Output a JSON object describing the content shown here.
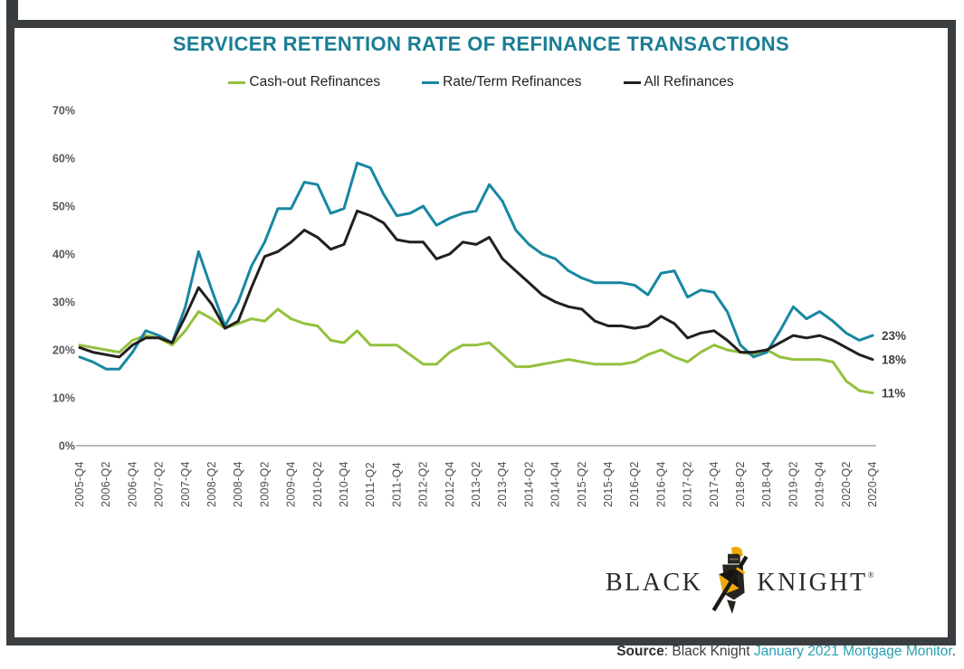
{
  "title": "SERVICER RETENTION RATE OF REFINANCE TRANSACTIONS",
  "chart_data": {
    "type": "line",
    "title": "SERVICER RETENTION RATE OF REFINANCE TRANSACTIONS",
    "xlabel": "",
    "ylabel": "",
    "x_unit": "quarter",
    "ylim": [
      0,
      70
    ],
    "grid": false,
    "legend_position": "top",
    "y_ticks": [
      0,
      10,
      20,
      30,
      40,
      50,
      60,
      70
    ],
    "y_tick_suffix": "%",
    "x_tick_labels": [
      "2005-Q4",
      "2006-Q2",
      "2006-Q4",
      "2007-Q2",
      "2007-Q4",
      "2008-Q2",
      "2008-Q4",
      "2009-Q2",
      "2009-Q4",
      "2010-Q2",
      "2010-Q4",
      "2011-Q2",
      "2011-Q4",
      "2012-Q2",
      "2012-Q4",
      "2013-Q2",
      "2013-Q4",
      "2014-Q2",
      "2014-Q4",
      "2015-Q2",
      "2015-Q4",
      "2016-Q2",
      "2016-Q4",
      "2017-Q2",
      "2017-Q4",
      "2018-Q2",
      "2018-Q4",
      "2019-Q2",
      "2019-Q4",
      "2020-Q2",
      "2020-Q4"
    ],
    "quarters": [
      "2005-Q4",
      "2006-Q1",
      "2006-Q2",
      "2006-Q3",
      "2006-Q4",
      "2007-Q1",
      "2007-Q2",
      "2007-Q3",
      "2007-Q4",
      "2008-Q1",
      "2008-Q2",
      "2008-Q3",
      "2008-Q4",
      "2009-Q1",
      "2009-Q2",
      "2009-Q3",
      "2009-Q4",
      "2010-Q1",
      "2010-Q2",
      "2010-Q3",
      "2010-Q4",
      "2011-Q1",
      "2011-Q2",
      "2011-Q3",
      "2011-Q4",
      "2012-Q1",
      "2012-Q2",
      "2012-Q3",
      "2012-Q4",
      "2013-Q1",
      "2013-Q2",
      "2013-Q3",
      "2013-Q4",
      "2014-Q1",
      "2014-Q2",
      "2014-Q3",
      "2014-Q4",
      "2015-Q1",
      "2015-Q2",
      "2015-Q3",
      "2015-Q4",
      "2016-Q1",
      "2016-Q2",
      "2016-Q3",
      "2016-Q4",
      "2017-Q1",
      "2017-Q2",
      "2017-Q3",
      "2017-Q4",
      "2018-Q1",
      "2018-Q2",
      "2018-Q3",
      "2018-Q4",
      "2019-Q1",
      "2019-Q2",
      "2019-Q3",
      "2019-Q4",
      "2020-Q1",
      "2020-Q2",
      "2020-Q3",
      "2020-Q4"
    ],
    "series": [
      {
        "name": "Cash-out Refinances",
        "color": "#94c13d",
        "end_label": "11%",
        "values": [
          21,
          20.5,
          20,
          19.5,
          22,
          23,
          22.5,
          21,
          24,
          28,
          26.5,
          24.5,
          25.5,
          26.5,
          26,
          28.5,
          26.5,
          25.5,
          25,
          22,
          21.5,
          24,
          21,
          21,
          21,
          19,
          17,
          17,
          19.5,
          21,
          21,
          21.5,
          19,
          16.5,
          16.5,
          17,
          17.5,
          18,
          17.5,
          17,
          17,
          17,
          17.5,
          19,
          20,
          18.5,
          17.5,
          19.5,
          21,
          20,
          19.5,
          19,
          20,
          18.5,
          18,
          18,
          18,
          17.5,
          13.5,
          11.5,
          11
        ]
      },
      {
        "name": "Rate/Term Refinances",
        "color": "#1787a1",
        "end_label": "23%",
        "values": [
          18.5,
          17.5,
          16,
          16,
          19.5,
          24,
          23,
          21.5,
          29,
          40.5,
          32.5,
          25,
          30,
          37.5,
          42.5,
          49.5,
          49.5,
          55,
          54.5,
          48.5,
          49.5,
          59,
          58,
          52.5,
          48,
          48.5,
          50,
          46,
          47.5,
          48.5,
          49,
          54.5,
          51,
          45,
          42,
          40,
          39,
          36.5,
          35,
          34,
          34,
          34,
          33.5,
          31.5,
          36,
          36.5,
          31,
          32.5,
          32,
          28,
          21,
          18.5,
          19.5,
          24,
          29,
          26.5,
          28,
          26,
          23.5,
          22,
          23
        ]
      },
      {
        "name": "All Refinances",
        "color": "#231f20",
        "end_label": "18%",
        "values": [
          20.5,
          19.5,
          19,
          18.5,
          21,
          22.5,
          22.5,
          21.5,
          27,
          33,
          29.5,
          24.5,
          26,
          33,
          39.5,
          40.5,
          42.5,
          45,
          43.5,
          41,
          42,
          49,
          48,
          46.5,
          43,
          42.5,
          42.5,
          39,
          40,
          42.5,
          42,
          43.5,
          39,
          36.5,
          34,
          31.5,
          30,
          29,
          28.5,
          26,
          25,
          25,
          24.5,
          25,
          27,
          25.5,
          22.5,
          23.5,
          24,
          22,
          19.5,
          19.5,
          20,
          21.5,
          23,
          22.5,
          23,
          22,
          20.5,
          19,
          18
        ]
      }
    ]
  },
  "logo": {
    "word_left": "BLACK",
    "word_right": "KNIGHT",
    "reg": "®"
  },
  "source": {
    "prefix_bold": "Source",
    "prefix_rest": ": Black Knight ",
    "link": "January 2021 Mortgage Monitor",
    "suffix": "."
  },
  "colors": {
    "title": "#1a7d94",
    "frame": "#3b3e41",
    "axis_line": "#b7b9bb",
    "x_tick_text": "#4d4d4f",
    "y_label_text": "#57585a",
    "end_label_text": "#414042",
    "legend_text": "#231f20",
    "source_link": "#2aa0b0",
    "logo_text": "#2b2a29",
    "logo_gold": "#eea904"
  }
}
